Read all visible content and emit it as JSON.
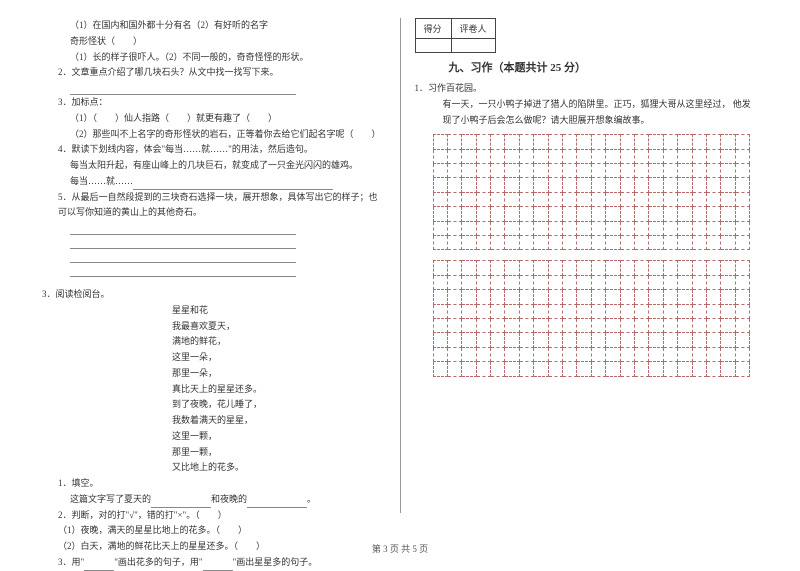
{
  "left": {
    "q1_l1": "（1）在国内和国外都十分有名（2）有好听的名字",
    "q1_l2": "奇形怪状（　　）",
    "q1_l3": "（1）长的样子很吓人。（2）不同一般的，奇奇怪怪的形状。",
    "q2": "2．文章重点介绍了哪几块石头？从文中找一找写下来。",
    "q3": "3．加标点：",
    "q3_l1": "（1）（　　）仙人指路（　　）就更有趣了（　　）",
    "q3_l2": "（2）那些叫不上名字的奇形怪状的岩石，正等着你去给它们起名字呢（　　）",
    "q4": "4．默读下划线内容，体会\"每当……就……\"的用法，然后造句。",
    "q4_l1": "每当太阳升起，有座山峰上的几块巨石，就变成了一只金光闪闪的雄鸡。",
    "q4_l2": "每当……就……",
    "q5": "5．从最后一自然段提到的三块奇石选择一块，展开想象，具体写出它的样子；也可以写你知道的黄山上的其他奇石。",
    "q_read": "3．阅读检阅台。",
    "poem_title": "星星和花",
    "p1": "我最喜欢夏天，",
    "p2": "满地的鲜花，",
    "p3": "这里一朵，",
    "p4": "那里一朵，",
    "p5": "真比天上的星星还多。",
    "p6": "到了夜晚，花儿睡了，",
    "p7": "我数着满天的星星，",
    "p8": "这里一颗，",
    "p9": "那里一颗，",
    "p10": "又比地上的花多。",
    "fill1": "1．填空。",
    "fill1_l": "这篇文字写了夏天的",
    "fill1_r": "和夜晚的",
    "judge": "2．判断，对的打\"√\"，错的打\"×\"。（　　）",
    "j1": "（1）夜晚，满天的星星比地上的花多。（　　）",
    "j2": "（2）白天，满地的鲜花比天上的星星还多。（　　）",
    "u3a": "3．用\"",
    "u3b": "\"画出花多的句子，用\"",
    "u3c": "\"画出星星多的句子。"
  },
  "right": {
    "score_l": "得分",
    "score_r": "评卷人",
    "section": "九、习作（本题共计 25 分）",
    "w1": "1．习作百花园。",
    "w2_a": "有一天，一只小鸭子掉进了猎人的陷阱里。正巧，狐狸大哥从这里经过，",
    "w2_b": "他发现了小鸭子后会怎么做呢？请大胆展开想象编故事。"
  },
  "footer": "第 3 页 共 5 页",
  "grid": {
    "rows": 8,
    "cols": 22
  },
  "colors": {
    "text": "#333333",
    "grid_border": "#b56b6b",
    "divider": "#999999",
    "table_border": "#444444"
  }
}
